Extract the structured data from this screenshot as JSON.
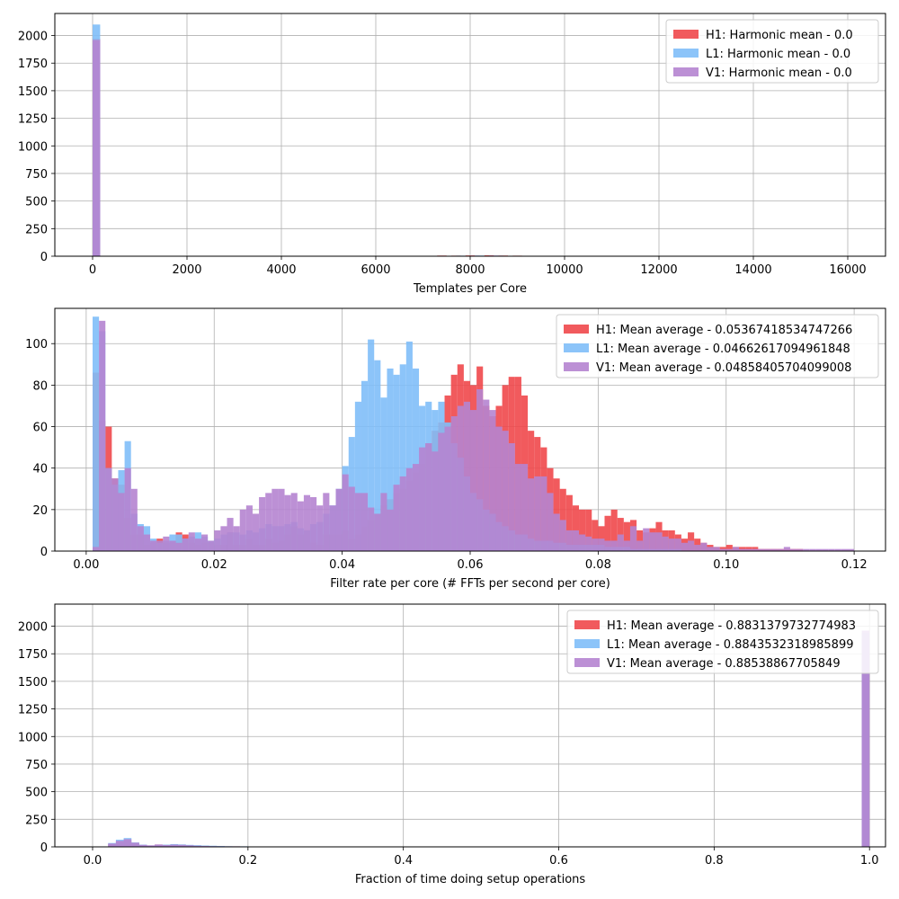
{
  "chart_data": [
    {
      "type": "bar",
      "subtype": "histogram",
      "xlabel": "Templates per Core",
      "ylabel": "",
      "xlim": [
        -800,
        16800
      ],
      "ylim": [
        0,
        2200
      ],
      "xticks": [
        0,
        2000,
        4000,
        6000,
        8000,
        10000,
        12000,
        14000,
        16000
      ],
      "xtick_labels": [
        "0",
        "2000",
        "4000",
        "6000",
        "8000",
        "10000",
        "12000",
        "14000",
        "16000"
      ],
      "yticks": [
        0,
        250,
        500,
        750,
        1000,
        1250,
        1500,
        1750,
        2000
      ],
      "ytick_labels": [
        "0",
        "250",
        "500",
        "750",
        "1000",
        "1250",
        "1500",
        "1750",
        "2000"
      ],
      "grid": true,
      "legend_position": "top-right",
      "series": [
        {
          "name": "H1: Harmonic mean  - 0.0",
          "color": "#f0484b",
          "bars": [
            [
              0,
              160,
              1970
            ],
            [
              3700,
              3900,
              3
            ],
            [
              6900,
              7100,
              4
            ],
            [
              7300,
              7500,
              6
            ],
            [
              7600,
              7800,
              5
            ],
            [
              7900,
              8100,
              7
            ],
            [
              8300,
              8500,
              8
            ],
            [
              8600,
              8800,
              6
            ],
            [
              8900,
              9100,
              5
            ],
            [
              9200,
              9400,
              4
            ],
            [
              9700,
              9900,
              3
            ],
            [
              10400,
              10600,
              3
            ],
            [
              10800,
              11000,
              4
            ],
            [
              11200,
              11400,
              3
            ]
          ]
        },
        {
          "name": "L1: Harmonic mean  - 0.0",
          "color": "#7fbef8",
          "bars": [
            [
              0,
              160,
              2100
            ],
            [
              3700,
              3900,
              3
            ],
            [
              6300,
              6500,
              3
            ],
            [
              6900,
              7100,
              3
            ],
            [
              7700,
              7900,
              5
            ],
            [
              8100,
              8300,
              6
            ],
            [
              8500,
              8700,
              5
            ],
            [
              9100,
              9300,
              4
            ],
            [
              9600,
              9800,
              3
            ],
            [
              10000,
              10200,
              3
            ],
            [
              10500,
              10700,
              2
            ]
          ]
        },
        {
          "name": "V1: Harmonic mean  - 0.0",
          "color": "#b584d0",
          "bars": [
            [
              0,
              160,
              1960
            ],
            [
              3700,
              3900,
              3
            ],
            [
              7500,
              7700,
              4
            ],
            [
              8000,
              8200,
              5
            ],
            [
              8400,
              8600,
              6
            ],
            [
              9000,
              9200,
              4
            ],
            [
              9500,
              9700,
              3
            ],
            [
              10200,
              10400,
              2
            ]
          ]
        }
      ]
    },
    {
      "type": "bar",
      "subtype": "histogram",
      "xlabel": "Filter rate per core (# FFTs per second per core)",
      "ylabel": "",
      "xlim": [
        -0.0049,
        0.1249
      ],
      "ylim": [
        0,
        117
      ],
      "bin_width": 0.001,
      "xticks": [
        0,
        0.02,
        0.04,
        0.06,
        0.08,
        0.1,
        0.12
      ],
      "xtick_labels": [
        "0.00",
        "0.02",
        "0.04",
        "0.06",
        "0.08",
        "0.10",
        "0.12"
      ],
      "yticks": [
        0,
        20,
        40,
        60,
        80,
        100
      ],
      "ytick_labels": [
        "0",
        "20",
        "40",
        "60",
        "80",
        "100"
      ],
      "grid": true,
      "legend_position": "top-right",
      "series": [
        {
          "name": "H1: Mean average - 0.05367418534747266",
          "color": "#f0484b",
          "start": 0.001,
          "counts": [
            86,
            63,
            60,
            35,
            32,
            16,
            8,
            8,
            3,
            4,
            6,
            4,
            4,
            9,
            8,
            4,
            3,
            4,
            4,
            3,
            3,
            9,
            3,
            3,
            6,
            3,
            3,
            6,
            4,
            5,
            8,
            12,
            8,
            10,
            4,
            3,
            8,
            8,
            8,
            10,
            6,
            8,
            12,
            15,
            18,
            22,
            25,
            28,
            30,
            34,
            38,
            42,
            52,
            58,
            62,
            75,
            85,
            90,
            82,
            80,
            89,
            70,
            65,
            70,
            80,
            84,
            84,
            75,
            58,
            55,
            50,
            40,
            35,
            30,
            27,
            22,
            20,
            20,
            15,
            12,
            17,
            20,
            16,
            14,
            15,
            10,
            9,
            11,
            14,
            10,
            10,
            8,
            6,
            9,
            6,
            4,
            3,
            2,
            2,
            3,
            2,
            2,
            2,
            2,
            1,
            1,
            1,
            1,
            1,
            1,
            1,
            0,
            0,
            0,
            0,
            0,
            0,
            0
          ]
        },
        {
          "name": "L1: Mean average - 0.04662617094961848",
          "color": "#7fbef8",
          "start": 0.001,
          "counts": [
            113,
            106,
            40,
            32,
            39,
            53,
            18,
            13,
            12,
            6,
            4,
            5,
            8,
            8,
            6,
            7,
            9,
            7,
            5,
            6,
            8,
            9,
            9,
            8,
            10,
            9,
            11,
            13,
            12,
            12,
            13,
            14,
            11,
            10,
            13,
            14,
            18,
            22,
            30,
            41,
            55,
            72,
            82,
            102,
            92,
            74,
            88,
            85,
            90,
            101,
            88,
            70,
            72,
            68,
            72,
            62,
            52,
            45,
            36,
            28,
            25,
            20,
            18,
            14,
            12,
            10,
            8,
            8,
            6,
            5,
            5,
            5,
            4,
            4,
            3,
            3,
            3,
            3,
            3,
            3,
            2,
            2,
            2,
            2,
            1,
            1,
            1,
            1,
            1,
            1,
            1,
            1,
            0,
            0,
            0,
            0,
            0,
            0,
            0,
            0,
            0,
            0,
            0,
            0,
            0,
            0,
            0,
            0,
            0,
            0,
            0,
            0,
            0,
            0,
            0,
            0,
            0
          ]
        },
        {
          "name": "V1: Mean average - 0.04858405704099008",
          "color": "#b584d0",
          "start": 0.001,
          "counts": [
            2,
            111,
            40,
            35,
            28,
            40,
            30,
            12,
            8,
            5,
            5,
            7,
            5,
            4,
            6,
            9,
            6,
            8,
            5,
            10,
            12,
            16,
            12,
            20,
            22,
            18,
            26,
            28,
            30,
            30,
            27,
            28,
            24,
            27,
            26,
            22,
            28,
            22,
            30,
            37,
            31,
            28,
            28,
            21,
            18,
            28,
            20,
            32,
            36,
            40,
            42,
            50,
            52,
            48,
            57,
            60,
            65,
            70,
            72,
            68,
            78,
            73,
            68,
            60,
            58,
            52,
            42,
            42,
            35,
            36,
            36,
            28,
            18,
            15,
            10,
            10,
            8,
            7,
            6,
            6,
            5,
            5,
            8,
            5,
            12,
            5,
            11,
            9,
            9,
            7,
            6,
            6,
            4,
            5,
            3,
            4,
            2,
            2,
            1,
            1,
            2,
            1,
            1,
            1,
            1,
            1,
            1,
            1,
            2,
            1,
            1,
            1,
            1,
            1,
            1,
            1,
            1,
            1,
            1
          ]
        }
      ]
    },
    {
      "type": "bar",
      "subtype": "histogram",
      "xlabel": "Fraction of time doing setup operations",
      "ylabel": "",
      "xlim": [
        -0.0486,
        1.0206
      ],
      "ylim": [
        0,
        2200
      ],
      "bin_width": 0.01,
      "xticks": [
        0,
        0.2,
        0.4,
        0.6,
        0.8,
        1.0
      ],
      "xtick_labels": [
        "0.0",
        "0.2",
        "0.4",
        "0.6",
        "0.8",
        "1.0"
      ],
      "yticks": [
        0,
        250,
        500,
        750,
        1000,
        1250,
        1500,
        1750,
        2000
      ],
      "ytick_labels": [
        "0",
        "250",
        "500",
        "750",
        "1000",
        "1250",
        "1500",
        "1750",
        "2000"
      ],
      "grid": true,
      "legend_position": "top-right",
      "series": [
        {
          "name": "H1: Mean average - 0.8831379732774983",
          "color": "#f0484b",
          "start": 0.01,
          "counts": [
            0,
            25,
            45,
            50,
            35,
            15,
            10,
            20,
            18,
            22,
            20,
            15,
            12,
            10,
            8,
            6,
            5,
            5,
            4,
            4,
            3,
            3,
            3,
            2,
            2,
            2,
            2,
            1,
            1,
            1,
            1,
            1
          ]
        },
        {
          "name": "L1: Mean average - 0.8843532318985899",
          "color": "#7fbef8",
          "start": 0.01,
          "counts": [
            0,
            35,
            65,
            80,
            40,
            20,
            12,
            18,
            20,
            25,
            22,
            18,
            15,
            12,
            10,
            8,
            6,
            5,
            5,
            4,
            4,
            3,
            3,
            3,
            3,
            2,
            2,
            2,
            2,
            1,
            1,
            1
          ]
        },
        {
          "name": "V1: Mean average - 0.88538867705849",
          "color": "#b584d0",
          "start": 0.01,
          "counts": [
            0,
            30,
            55,
            70,
            38,
            18,
            14,
            22,
            16,
            20,
            18,
            14,
            10,
            8,
            6,
            5,
            4,
            4,
            3,
            3,
            3,
            2,
            2,
            2,
            2,
            1,
            1,
            1,
            1,
            1,
            1,
            1
          ]
        }
      ],
      "spike": {
        "x0": 0.99,
        "x1": 1.0,
        "values": [
          1880,
          1940,
          1960
        ]
      }
    }
  ]
}
